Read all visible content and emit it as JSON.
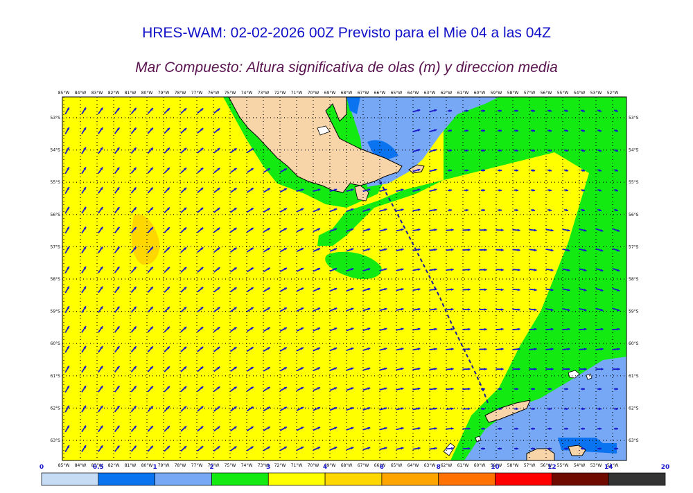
{
  "header": {
    "title": "HRES-WAM: 02-02-2026 00Z Previsto para el Mie 04 a las 04Z",
    "subtitle": "Mar Compuesto: Altura significativa de olas (m) y direccion media"
  },
  "map": {
    "lon_labels": [
      "85°W",
      "84°W",
      "83°W",
      "82°W",
      "81°W",
      "80°W",
      "79°W",
      "78°W",
      "77°W",
      "76°W",
      "75°W",
      "74°W",
      "73°W",
      "72°W",
      "71°W",
      "70°W",
      "69°W",
      "68°W",
      "67°W",
      "66°W",
      "65°W",
      "64°W",
      "63°W",
      "62°W",
      "61°W",
      "60°W",
      "59°W",
      "58°W",
      "57°W",
      "56°W",
      "55°W",
      "54°W",
      "53°W",
      "52°W"
    ],
    "lat_labels": [
      "53°S",
      "54°S",
      "55°S",
      "56°S",
      "57°S",
      "58°S",
      "59°S",
      "60°S",
      "61°S",
      "62°S",
      "63°S"
    ],
    "colors": {
      "land": "#f8d5a8",
      "coast": "#000000",
      "grid": "#000000",
      "arrow": "#1a1acd",
      "route": "#1a1a9c"
    }
  },
  "legend": {
    "bins": [
      {
        "label": "0",
        "color": "#c6dcf5"
      },
      {
        "label": "0.5",
        "color": "#0a74f0"
      },
      {
        "label": "1",
        "color": "#76a8f6"
      },
      {
        "label": "2",
        "color": "#12ea12"
      },
      {
        "label": "3",
        "color": "#ffff00"
      },
      {
        "label": "4",
        "color": "#ffd700"
      },
      {
        "label": "6",
        "color": "#ffa500"
      },
      {
        "label": "8",
        "color": "#ff7100"
      },
      {
        "label": "10",
        "color": "#ff0000"
      },
      {
        "label": "12",
        "color": "#6e0a00"
      },
      {
        "label": "14",
        "color": "#333333"
      }
    ],
    "end_label": "20"
  }
}
